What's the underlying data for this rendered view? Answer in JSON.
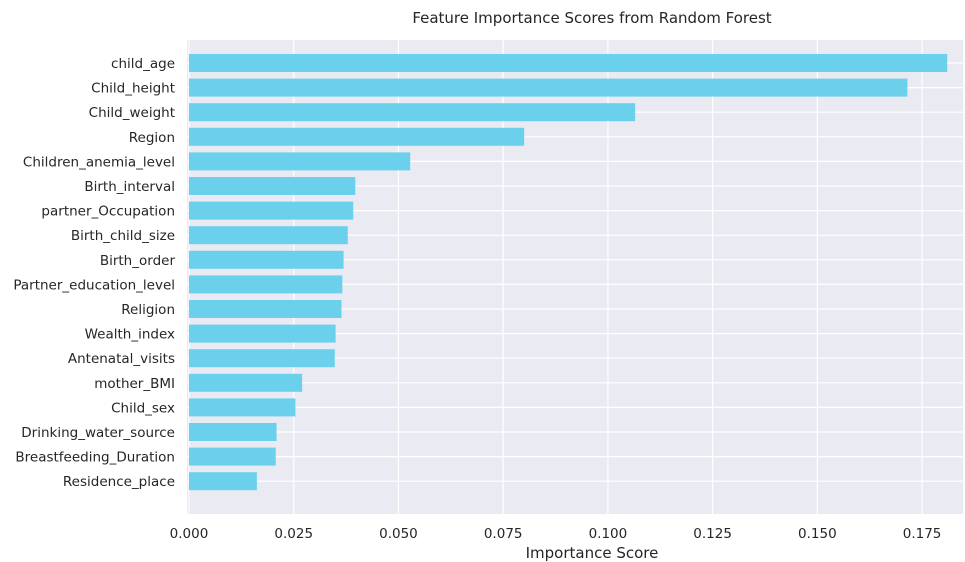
{
  "chart_data": {
    "type": "bar",
    "orientation": "horizontal",
    "title": "Feature Importance Scores from Random Forest",
    "xlabel": "Importance Score",
    "ylabel": "",
    "xlim": [
      0,
      0.1825
    ],
    "xticks": [
      "0.000",
      "0.025",
      "0.050",
      "0.075",
      "0.100",
      "0.125",
      "0.150",
      "0.175"
    ],
    "xtick_values": [
      0,
      0.025,
      0.05,
      0.075,
      0.1,
      0.125,
      0.15,
      0.175
    ],
    "grid": true,
    "bar_color": "#6ad0ec",
    "background_color": "#eaeaf2",
    "grid_color": "#ffffff",
    "categories": [
      "child_age",
      "Child_height",
      "Child_weight",
      "Region",
      "Children_anemia_level",
      "Birth_interval",
      "partner_Occupation",
      "Birth_child_size",
      "Birth_order",
      "Partner_education_level",
      "Religion",
      "Wealth_index",
      "Antenatal_visits",
      "mother_BMI",
      "Child_sex",
      "Drinking_water_source",
      "Breastfeeding_Duration",
      "Residence_place"
    ],
    "values": [
      0.181,
      0.1715,
      0.1065,
      0.08,
      0.0528,
      0.0397,
      0.0392,
      0.0379,
      0.0369,
      0.0366,
      0.0364,
      0.035,
      0.0348,
      0.027,
      0.0254,
      0.0209,
      0.0207,
      0.0162
    ]
  }
}
